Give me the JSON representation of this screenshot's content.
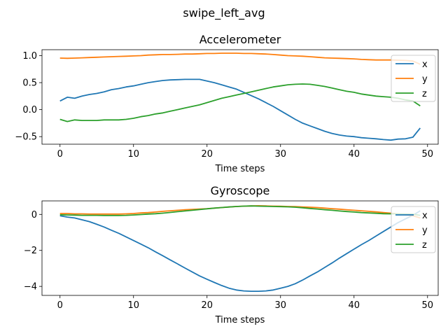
{
  "suptitle": "swipe_left_avg",
  "colors": {
    "x": "#1f77b4",
    "y": "#ff7f0e",
    "z": "#2ca02c",
    "axis": "#000000",
    "legend_border": "#cccccc"
  },
  "chart_data": [
    {
      "type": "line",
      "title": "Accelerometer",
      "xlabel": "Time steps",
      "ylabel": "",
      "xlim": [
        -2.45,
        51.45
      ],
      "ylim": [
        -0.64,
        1.11
      ],
      "xticks": [
        0,
        10,
        20,
        30,
        40,
        50
      ],
      "yticks": [
        -0.5,
        0.0,
        0.5,
        1.0
      ],
      "ytick_labels": [
        "−0.5",
        "0.0",
        "0.5",
        "1.0"
      ],
      "grid": false,
      "legend": "right",
      "x": [
        0,
        1,
        2,
        3,
        4,
        5,
        6,
        7,
        8,
        9,
        10,
        11,
        12,
        13,
        14,
        15,
        16,
        17,
        18,
        19,
        20,
        21,
        22,
        23,
        24,
        25,
        26,
        27,
        28,
        29,
        30,
        31,
        32,
        33,
        34,
        35,
        36,
        37,
        38,
        39,
        40,
        41,
        42,
        43,
        44,
        45,
        46,
        47,
        48,
        49
      ],
      "series": [
        {
          "name": "x",
          "color_key": "x",
          "values": [
            0.16,
            0.23,
            0.21,
            0.25,
            0.28,
            0.3,
            0.33,
            0.37,
            0.39,
            0.42,
            0.44,
            0.47,
            0.5,
            0.52,
            0.54,
            0.55,
            0.555,
            0.56,
            0.56,
            0.56,
            0.53,
            0.5,
            0.46,
            0.42,
            0.38,
            0.32,
            0.26,
            0.2,
            0.13,
            0.06,
            -0.02,
            -0.1,
            -0.18,
            -0.25,
            -0.3,
            -0.35,
            -0.4,
            -0.44,
            -0.47,
            -0.49,
            -0.5,
            -0.52,
            -0.53,
            -0.54,
            -0.555,
            -0.565,
            -0.545,
            -0.54,
            -0.51,
            -0.34
          ]
        },
        {
          "name": "y",
          "color_key": "y",
          "values": [
            0.955,
            0.95,
            0.955,
            0.96,
            0.965,
            0.97,
            0.975,
            0.98,
            0.985,
            0.99,
            0.995,
            1.0,
            1.01,
            1.015,
            1.02,
            1.02,
            1.025,
            1.03,
            1.03,
            1.035,
            1.04,
            1.04,
            1.045,
            1.045,
            1.045,
            1.04,
            1.04,
            1.035,
            1.03,
            1.02,
            1.01,
            1.0,
            0.995,
            0.99,
            0.98,
            0.97,
            0.96,
            0.955,
            0.95,
            0.945,
            0.94,
            0.93,
            0.925,
            0.92,
            0.92,
            0.92,
            0.915,
            0.91,
            0.9,
            0.84
          ]
        },
        {
          "name": "z",
          "color_key": "z",
          "values": [
            -0.18,
            -0.22,
            -0.19,
            -0.2,
            -0.2,
            -0.2,
            -0.19,
            -0.19,
            -0.19,
            -0.18,
            -0.16,
            -0.13,
            -0.11,
            -0.08,
            -0.06,
            -0.03,
            0.0,
            0.03,
            0.06,
            0.09,
            0.13,
            0.17,
            0.21,
            0.24,
            0.27,
            0.3,
            0.33,
            0.36,
            0.39,
            0.42,
            0.44,
            0.46,
            0.47,
            0.475,
            0.47,
            0.45,
            0.43,
            0.4,
            0.37,
            0.34,
            0.32,
            0.29,
            0.27,
            0.25,
            0.24,
            0.23,
            0.21,
            0.18,
            0.16,
            0.07
          ]
        }
      ]
    },
    {
      "type": "line",
      "title": "Gyroscope",
      "xlabel": "Time steps",
      "ylabel": "",
      "xlim": [
        -2.45,
        51.45
      ],
      "ylim": [
        -4.5,
        0.75
      ],
      "xticks": [
        0,
        10,
        20,
        30,
        40,
        50
      ],
      "yticks": [
        -4,
        -2,
        0
      ],
      "ytick_labels": [
        "−4",
        "−2",
        "0"
      ],
      "grid": false,
      "legend": "right",
      "x": [
        0,
        1,
        2,
        3,
        4,
        5,
        6,
        7,
        8,
        9,
        10,
        11,
        12,
        13,
        14,
        15,
        16,
        17,
        18,
        19,
        20,
        21,
        22,
        23,
        24,
        25,
        26,
        27,
        28,
        29,
        30,
        31,
        32,
        33,
        34,
        35,
        36,
        37,
        38,
        39,
        40,
        41,
        42,
        43,
        44,
        45,
        46,
        47,
        48,
        49
      ],
      "series": [
        {
          "name": "x",
          "color_key": "x",
          "values": [
            -0.08,
            -0.15,
            -0.2,
            -0.3,
            -0.4,
            -0.55,
            -0.7,
            -0.88,
            -1.05,
            -1.25,
            -1.45,
            -1.65,
            -1.85,
            -2.08,
            -2.3,
            -2.53,
            -2.75,
            -2.98,
            -3.2,
            -3.42,
            -3.6,
            -3.78,
            -3.95,
            -4.1,
            -4.2,
            -4.25,
            -4.27,
            -4.27,
            -4.25,
            -4.2,
            -4.1,
            -4.0,
            -3.85,
            -3.65,
            -3.42,
            -3.2,
            -2.95,
            -2.7,
            -2.43,
            -2.18,
            -1.93,
            -1.68,
            -1.45,
            -1.2,
            -0.95,
            -0.7,
            -0.45,
            -0.25,
            -0.05,
            0.2
          ]
        },
        {
          "name": "y",
          "color_key": "y",
          "values": [
            0.05,
            0.05,
            0.03,
            0.03,
            0.02,
            0.02,
            0.02,
            0.02,
            0.02,
            0.03,
            0.05,
            0.08,
            0.1,
            0.13,
            0.17,
            0.2,
            0.23,
            0.26,
            0.28,
            0.3,
            0.32,
            0.35,
            0.38,
            0.41,
            0.44,
            0.46,
            0.47,
            0.48,
            0.47,
            0.46,
            0.45,
            0.44,
            0.43,
            0.41,
            0.4,
            0.38,
            0.35,
            0.32,
            0.29,
            0.26,
            0.23,
            0.2,
            0.17,
            0.14,
            0.1,
            0.07,
            0.03,
            -0.02,
            -0.08,
            -0.2
          ]
        },
        {
          "name": "z",
          "color_key": "z",
          "values": [
            -0.02,
            -0.03,
            -0.04,
            -0.05,
            -0.05,
            -0.05,
            -0.06,
            -0.06,
            -0.06,
            -0.05,
            -0.03,
            -0.01,
            0.02,
            0.04,
            0.07,
            0.11,
            0.15,
            0.19,
            0.23,
            0.27,
            0.31,
            0.35,
            0.38,
            0.41,
            0.44,
            0.46,
            0.47,
            0.46,
            0.45,
            0.44,
            0.43,
            0.42,
            0.4,
            0.37,
            0.33,
            0.3,
            0.26,
            0.23,
            0.19,
            0.16,
            0.13,
            0.1,
            0.08,
            0.06,
            0.04,
            0.03,
            0.03,
            0.02,
            0.01,
            -0.05
          ]
        }
      ]
    }
  ]
}
